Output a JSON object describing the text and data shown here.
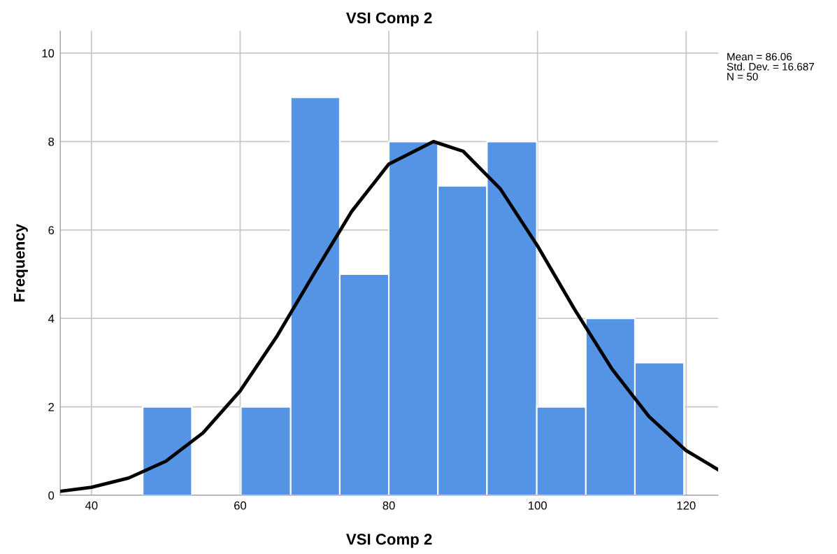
{
  "chart_data": {
    "type": "histogram",
    "title": "VSI Comp 2",
    "xlabel": "VSI Comp 2",
    "ylabel": "Frequency",
    "xlim": [
      35.8,
      124.3
    ],
    "xticks": [
      40,
      60,
      80,
      100,
      120
    ],
    "ylim": [
      0,
      10.5
    ],
    "yticks": [
      0,
      2,
      4,
      6,
      8,
      10
    ],
    "grid": true,
    "color": "#5594e4",
    "bins": [
      46.9,
      53.5,
      60.1,
      66.8,
      73.4,
      80.0,
      86.6,
      93.2,
      99.9,
      106.5,
      113.1,
      119.7
    ],
    "values": [
      2,
      0,
      2,
      9,
      5,
      8,
      7,
      8,
      2,
      4,
      3
    ],
    "series": [
      {
        "type": "line",
        "color": "#000000",
        "x": [
          35.8,
          40,
          45,
          50,
          55,
          60,
          65,
          70,
          75,
          80,
          86,
          90,
          95,
          100,
          105,
          110,
          115,
          120,
          124.3
        ],
        "values": [
          0.09,
          0.18,
          0.39,
          0.77,
          1.41,
          2.36,
          3.61,
          5.03,
          6.42,
          7.49,
          8.0,
          7.78,
          6.93,
          5.64,
          4.2,
          2.86,
          1.78,
          1.01,
          0.58
        ]
      }
    ],
    "annotations": [
      "Mean = 86.06",
      "Std. Dev. = 16.687",
      "N = 50"
    ]
  }
}
